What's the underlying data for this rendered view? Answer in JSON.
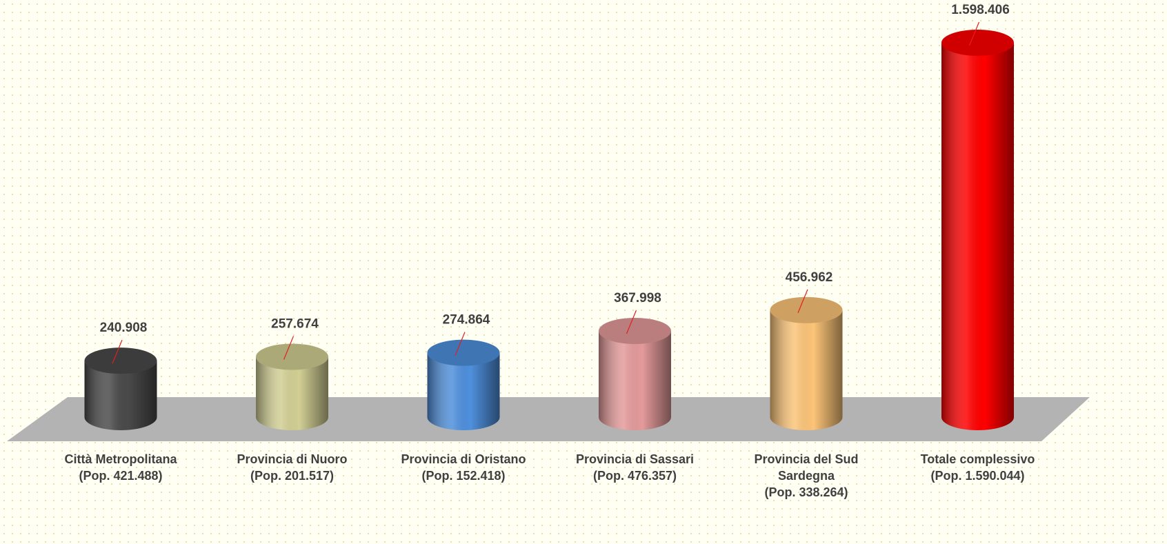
{
  "chart_data": {
    "type": "bar",
    "categories": [
      "Città Metropolitana\n(Pop. 421.488)",
      "Provincia di Nuoro\n(Pop. 201.517)",
      "Provincia di Oristano\n(Pop. 152.418)",
      "Provincia di Sassari\n(Pop. 476.357)",
      "Provincia del Sud\nSardegna\n(Pop. 338.264)",
      "Totale complessivo\n(Pop. 1.590.044)"
    ],
    "values": [
      240908,
      257674,
      274864,
      367998,
      456962,
      1598406
    ],
    "value_labels": [
      "240.908",
      "257.674",
      "274.864",
      "367.998",
      "456.962",
      "1.598.406"
    ],
    "colors": [
      "#4a4a4a",
      "#d2cf94",
      "#4f8fdc",
      "#e49a9a",
      "#fcc478",
      "#ff0000"
    ]
  }
}
